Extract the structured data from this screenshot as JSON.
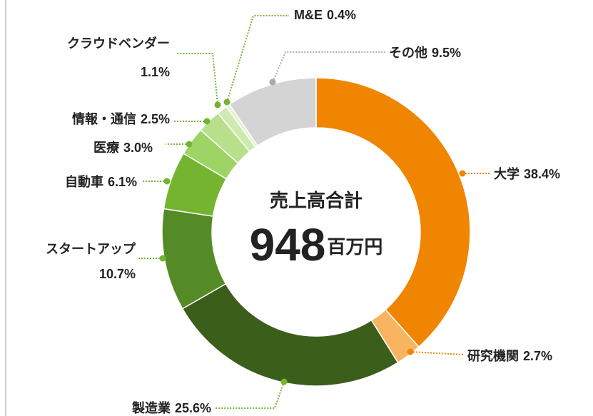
{
  "chart_data": {
    "type": "pie",
    "center_label": "売上高合計",
    "total": 948,
    "total_unit": "百万円",
    "categories": [
      "大学",
      "研究機関",
      "製造業",
      "スタートアップ",
      "自動車",
      "医療",
      "情報・通信",
      "クラウドベンダー",
      "M&E",
      "その他"
    ],
    "values": [
      38.4,
      2.7,
      25.6,
      10.7,
      6.1,
      3.0,
      2.5,
      1.1,
      0.4,
      9.5
    ],
    "value_labels": [
      "38.4%",
      "2.7%",
      "25.6%",
      "10.7%",
      "6.1%",
      "3.0%",
      "2.5%",
      "1.1%",
      "0.4%",
      "9.5%"
    ],
    "colors": [
      "#ef8500",
      "#f9b462",
      "#3b5e1b",
      "#558b27",
      "#74b42f",
      "#9ed366",
      "#b8e08b",
      "#cfeab0",
      "#e3f2d2",
      "#d4d4d4"
    ]
  }
}
